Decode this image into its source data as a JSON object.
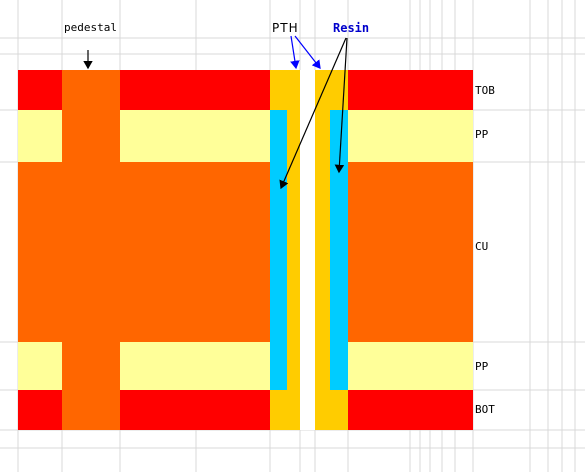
{
  "labels": {
    "pedestal": "pedestal",
    "pth": "PTH",
    "resin": "Resin",
    "tob": "TOB",
    "pp_top": "PP",
    "cu": "CU",
    "pp_bottom": "PP",
    "bot": "BOT"
  },
  "colors": {
    "copper_foil": "#ff0000",
    "prepreg": "#ffff99",
    "core_copper": "#ff6600",
    "plating": "#ffcc00",
    "resin_fill": "#00ccff",
    "grid_line": "#d9d9d9",
    "pth_arrow": "#0000ff",
    "black_arrow": "#000000"
  }
}
